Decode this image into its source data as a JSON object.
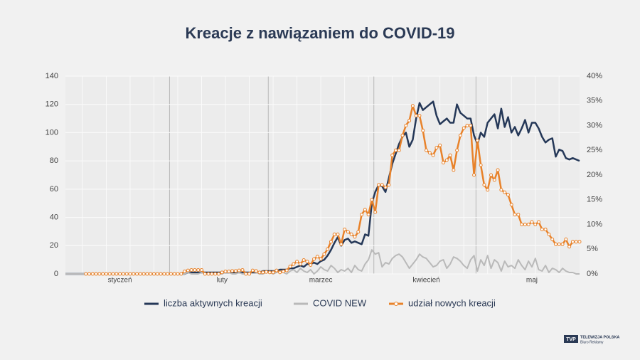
{
  "chart_data": {
    "type": "line",
    "title": "Kreacje z nawiązaniem do COVID-19",
    "categories": [
      null,
      null,
      null,
      null,
      null,
      null,
      null,
      null,
      null,
      null,
      null,
      null,
      null,
      null,
      null,
      null,
      "styczeń",
      null,
      null,
      null,
      null,
      null,
      null,
      null,
      null,
      null,
      null,
      null,
      null,
      null,
      null,
      null,
      null,
      null,
      null,
      null,
      null,
      null,
      null,
      null,
      null,
      null,
      null,
      null,
      null,
      null,
      "luty",
      null,
      null,
      null,
      null,
      null,
      null,
      null,
      null,
      null,
      null,
      null,
      null,
      null,
      null,
      null,
      null,
      null,
      null,
      null,
      null,
      null,
      null,
      null,
      null,
      null,
      null,
      null,
      null,
      "marzec",
      null,
      null,
      null,
      null,
      null,
      null,
      null,
      null,
      null,
      null,
      null,
      null,
      null,
      null,
      null,
      null,
      null,
      null,
      null,
      null,
      null,
      null,
      null,
      null,
      null,
      null,
      null,
      null,
      null,
      null,
      "kwiecień",
      null,
      null,
      null,
      null,
      null,
      null,
      null,
      null,
      null,
      null,
      null,
      null,
      null,
      null,
      null,
      null,
      null,
      null,
      null,
      null,
      null,
      null,
      null,
      null,
      null,
      null,
      null,
      null,
      null,
      null,
      "maj",
      null,
      null,
      null,
      null,
      null,
      null,
      null,
      null,
      null,
      null,
      null,
      null,
      null,
      null
    ],
    "series": [
      {
        "name": "liczba aktywnych kreacji",
        "color": "#253858",
        "axis": "y",
        "markers": false,
        "values": [
          0,
          0,
          0,
          0,
          0,
          0,
          0,
          0,
          0,
          0,
          0,
          0,
          0,
          0,
          0,
          0,
          0,
          0,
          0,
          0,
          0,
          0,
          0,
          0,
          0,
          0,
          0,
          0,
          0,
          0,
          0,
          0,
          0,
          0,
          0,
          0,
          1,
          1,
          1,
          1,
          1,
          1,
          1,
          1,
          1,
          1,
          1,
          1,
          1,
          1,
          1,
          1,
          1,
          1,
          1,
          1,
          1,
          1,
          2,
          2,
          2,
          2,
          2,
          3,
          3,
          3,
          4,
          4,
          5,
          6,
          5,
          7,
          7,
          8,
          7,
          9,
          10,
          13,
          17,
          22,
          26,
          20,
          24,
          25,
          22,
          23,
          22,
          21,
          28,
          27,
          50,
          58,
          63,
          62,
          58,
          68,
          78,
          85,
          92,
          97,
          100,
          90,
          95,
          110,
          121,
          116,
          118,
          120,
          122,
          112,
          106,
          108,
          110,
          107,
          107,
          120,
          114,
          112,
          110,
          110,
          98,
          92,
          100,
          97,
          107,
          110,
          113,
          103,
          117,
          104,
          111,
          100,
          104,
          98,
          103,
          109,
          100,
          107,
          107,
          103,
          97,
          93,
          95,
          96,
          83,
          88,
          87,
          82,
          81,
          82,
          81,
          80
        ]
      },
      {
        "name": "COVID NEW",
        "color": "#b9b9b9",
        "axis": "y",
        "markers": false,
        "values": [
          0,
          0,
          0,
          0,
          0,
          0,
          0,
          0,
          0,
          0,
          0,
          0,
          0,
          0,
          0,
          0,
          0,
          0,
          0,
          0,
          0,
          0,
          0,
          0,
          0,
          0,
          0,
          0,
          0,
          0,
          0,
          0,
          0,
          0,
          0,
          0,
          1,
          0,
          0,
          0,
          1,
          0,
          0,
          0,
          0,
          0,
          0,
          1,
          1,
          0,
          0,
          1,
          0,
          0,
          1,
          2,
          1,
          0,
          0,
          1,
          1,
          0,
          1,
          2,
          1,
          0,
          2,
          3,
          1,
          4,
          2,
          1,
          3,
          0,
          2,
          5,
          3,
          2,
          6,
          4,
          1,
          3,
          2,
          4,
          1,
          6,
          3,
          2,
          7,
          10,
          17,
          14,
          15,
          5,
          8,
          7,
          11,
          13,
          14,
          12,
          8,
          4,
          7,
          10,
          14,
          12,
          11,
          8,
          5,
          6,
          9,
          10,
          4,
          7,
          12,
          11,
          9,
          6,
          4,
          10,
          13,
          2,
          10,
          6,
          13,
          4,
          10,
          8,
          2,
          9,
          5,
          6,
          4,
          10,
          6,
          3,
          9,
          5,
          11,
          3,
          2,
          6,
          1,
          4,
          3,
          1,
          4,
          2,
          1,
          1,
          0,
          0
        ]
      },
      {
        "name": "udział nowych kreacji",
        "color": "#e8822a",
        "axis": "y2",
        "markers": true,
        "values": [
          null,
          null,
          null,
          null,
          null,
          null,
          0,
          0,
          0,
          0,
          0,
          0,
          0,
          0,
          0,
          0,
          0,
          0,
          0,
          0,
          0,
          0,
          0,
          0,
          0,
          0,
          0,
          0,
          0,
          0,
          0,
          0,
          0,
          0,
          0,
          0.5,
          0.7,
          0.8,
          0.8,
          0.8,
          0.8,
          0,
          0,
          0,
          0,
          0,
          0.3,
          0.5,
          0.5,
          0.6,
          0.6,
          0.7,
          0.8,
          0,
          0,
          0.7,
          0.6,
          0.3,
          0.3,
          0.4,
          0.3,
          0.3,
          0.7,
          0.3,
          0.5,
          0.7,
          1.5,
          2,
          2.5,
          2,
          2.8,
          2.5,
          1.8,
          3,
          3.5,
          3,
          4,
          5,
          6.5,
          8,
          8,
          6,
          9,
          8.5,
          8,
          7.5,
          8.5,
          12,
          13,
          12,
          15,
          12.5,
          18,
          18,
          17.5,
          18,
          24,
          25,
          25,
          28,
          30,
          31,
          34,
          32,
          32,
          29,
          25,
          24.5,
          24,
          25.5,
          26,
          22.5,
          23,
          24,
          21,
          25,
          28,
          29.5,
          30,
          30,
          20,
          27,
          22,
          18,
          17,
          20,
          19,
          21,
          17,
          16.5,
          16,
          14,
          12,
          12,
          10,
          10,
          10,
          10.5,
          10,
          10.5,
          9,
          9,
          8,
          7,
          6,
          6,
          6,
          7,
          5.5,
          6.5,
          6.5,
          6.5
        ]
      }
    ],
    "ylim": [
      0,
      140
    ],
    "yticks": [
      0,
      20,
      40,
      60,
      80,
      100,
      120,
      140
    ],
    "y2lim": [
      0,
      40
    ],
    "y2ticks": [
      {
        "value": 0,
        "label": "0%"
      },
      {
        "value": 5,
        "label": "5%"
      },
      {
        "value": 10,
        "label": "10%"
      },
      {
        "value": 15,
        "label": "15%"
      },
      {
        "value": 20,
        "label": "20%"
      },
      {
        "value": 25,
        "label": "25%"
      },
      {
        "value": 30,
        "label": "30%"
      },
      {
        "value": 35,
        "label": "35%"
      },
      {
        "value": 40,
        "label": "40%"
      }
    ],
    "grid": true,
    "legend": "bottom",
    "logo": {
      "mark": "TVP",
      "name": "TELEWIZJA POLSKA",
      "unit": "Biuro Reklamy"
    }
  }
}
